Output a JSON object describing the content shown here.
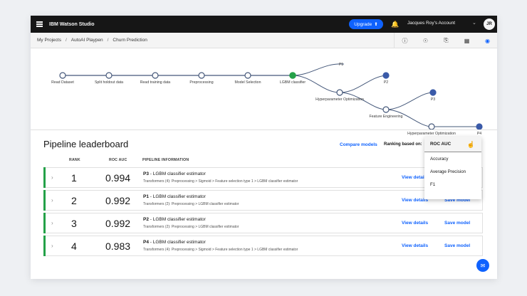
{
  "app": {
    "brand": "IBM Watson Studio",
    "upgrade_label": "Upgrade",
    "account_label": "Jacques Roy's Account",
    "avatar_initials": "JR"
  },
  "breadcrumb": {
    "items": [
      "My Projects",
      "AutoAI Playpen",
      "Churn Prediction"
    ],
    "separator": "/"
  },
  "pipeline_graph": {
    "steps": [
      "Read Dataset",
      "Split holdout data",
      "Read training data",
      "Preprocessing",
      "Model Selection",
      "LGBM classifier"
    ],
    "branches": [
      "P1",
      "P2",
      "Hyperparameter Optimization",
      "P3",
      "Feature Engineering",
      "Hyperparameter Optimization",
      "P4"
    ]
  },
  "leaderboard": {
    "title": "Pipeline leaderboard",
    "compare_label": "Compare models",
    "ranking_label": "Ranking based on:",
    "columns": {
      "rank": "RANK",
      "metric": "ROC AUC",
      "info": "PIPELINE INFORMATION"
    },
    "dropdown": {
      "selected": "ROC AUC",
      "options": [
        "Accuracy",
        "Average Precision",
        "F1"
      ]
    },
    "view_label": "View details",
    "save_label": "Save model",
    "rows": [
      {
        "rank": "1",
        "score": "0.994",
        "pipeline": "P3",
        "estimator": "LGBM classifier estimator",
        "transformers": "Transformers (4): Preprocessing > Sigmoid > Feature selection type 1 > LGBM classifier estimator"
      },
      {
        "rank": "2",
        "score": "0.992",
        "pipeline": "P1",
        "estimator": "LGBM classifier estimator",
        "transformers": "Transformers (2): Preprocessing > LGBM classifier estimator"
      },
      {
        "rank": "3",
        "score": "0.992",
        "pipeline": "P2",
        "estimator": "LGBM classifier estimator",
        "transformers": "Transformers (2): Preprocessing > LGBM classifier estimator"
      },
      {
        "rank": "4",
        "score": "0.983",
        "pipeline": "P4",
        "estimator": "LGBM classifier estimator",
        "transformers": "Transformers (4): Preprocessing > Sigmoid > Feature selection type 1 > LGBM classifier estimator"
      }
    ]
  },
  "colors": {
    "accent": "#0f62fe",
    "success": "#24a148",
    "node_line": "#45587a",
    "topbar": "#161616"
  },
  "icons": [
    "menu-icon",
    "upgrade-arrow-icon",
    "bell-icon",
    "chevron-down-icon",
    "info-icon",
    "explore-icon",
    "notebook-icon",
    "grid-icon",
    "compass-icon",
    "chevron-right-icon",
    "chat-icon"
  ]
}
